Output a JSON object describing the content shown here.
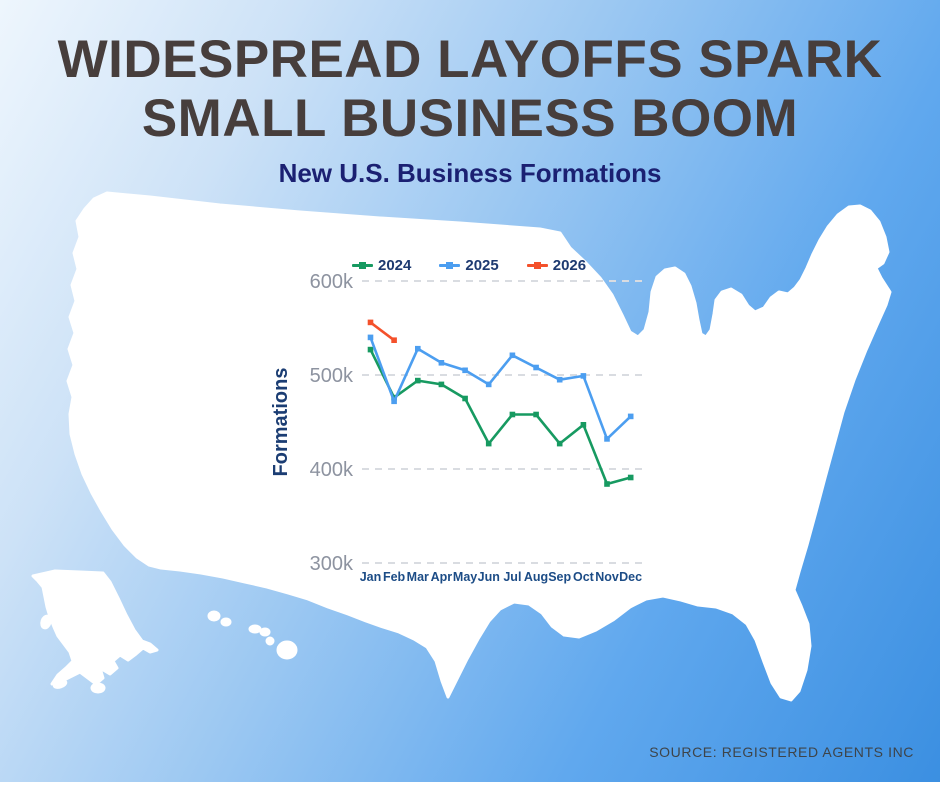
{
  "header": {
    "title_line1": "WIDESPREAD LAYOFFS SPARK",
    "title_line2": "SMALL BUSINESS BOOM",
    "subtitle": "New U.S. Business Formations"
  },
  "footer": {
    "source": "SOURCE: REGISTERED AGENTS INC"
  },
  "colors": {
    "background_top_left": "#eef6fd",
    "background_bottom_right": "#3b8fe1",
    "map_fill": "#ffffff",
    "title_text": "#473e3c",
    "subtitle_text": "#1b2072",
    "ytick_text": "#8d93a0",
    "month_text": "#1c4c86",
    "ylabel_text": "#1b3d73",
    "legend_text": "#1e3a70",
    "gridline": "#d9dce1",
    "series_2024": "#179a61",
    "series_2025": "#4c9ef0",
    "series_2026": "#f4512b",
    "source_text": "#3e4449"
  },
  "chart_data": {
    "type": "line",
    "title": "New U.S. Business Formations",
    "xlabel": "",
    "ylabel": "Formations",
    "categories": [
      "Jan",
      "Feb",
      "Mar",
      "Apr",
      "May",
      "Jun",
      "Jul",
      "Aug",
      "Sep",
      "Oct",
      "Nov",
      "Dec"
    ],
    "y_ticks": [
      {
        "label": "300k",
        "value": 300000
      },
      {
        "label": "400k",
        "value": 400000
      },
      {
        "label": "500k",
        "value": 500000
      },
      {
        "label": "600k",
        "value": 600000
      }
    ],
    "ylim": [
      280000,
      620000
    ],
    "grid": "horizontal-dashed",
    "legend_position": "top",
    "series": [
      {
        "name": "2024",
        "color": "#179a61",
        "values": [
          527000,
          476000,
          494000,
          490000,
          475000,
          427000,
          458000,
          458000,
          427000,
          447000,
          384000,
          391000
        ]
      },
      {
        "name": "2025",
        "color": "#4c9ef0",
        "values": [
          540000,
          472000,
          528000,
          513000,
          505000,
          490000,
          521000,
          508000,
          495000,
          499000,
          432000,
          456000
        ]
      },
      {
        "name": "2026",
        "color": "#f4512b",
        "values": [
          556000,
          537000,
          null,
          null,
          null,
          null,
          null,
          null,
          null,
          null,
          null,
          null
        ]
      }
    ]
  }
}
